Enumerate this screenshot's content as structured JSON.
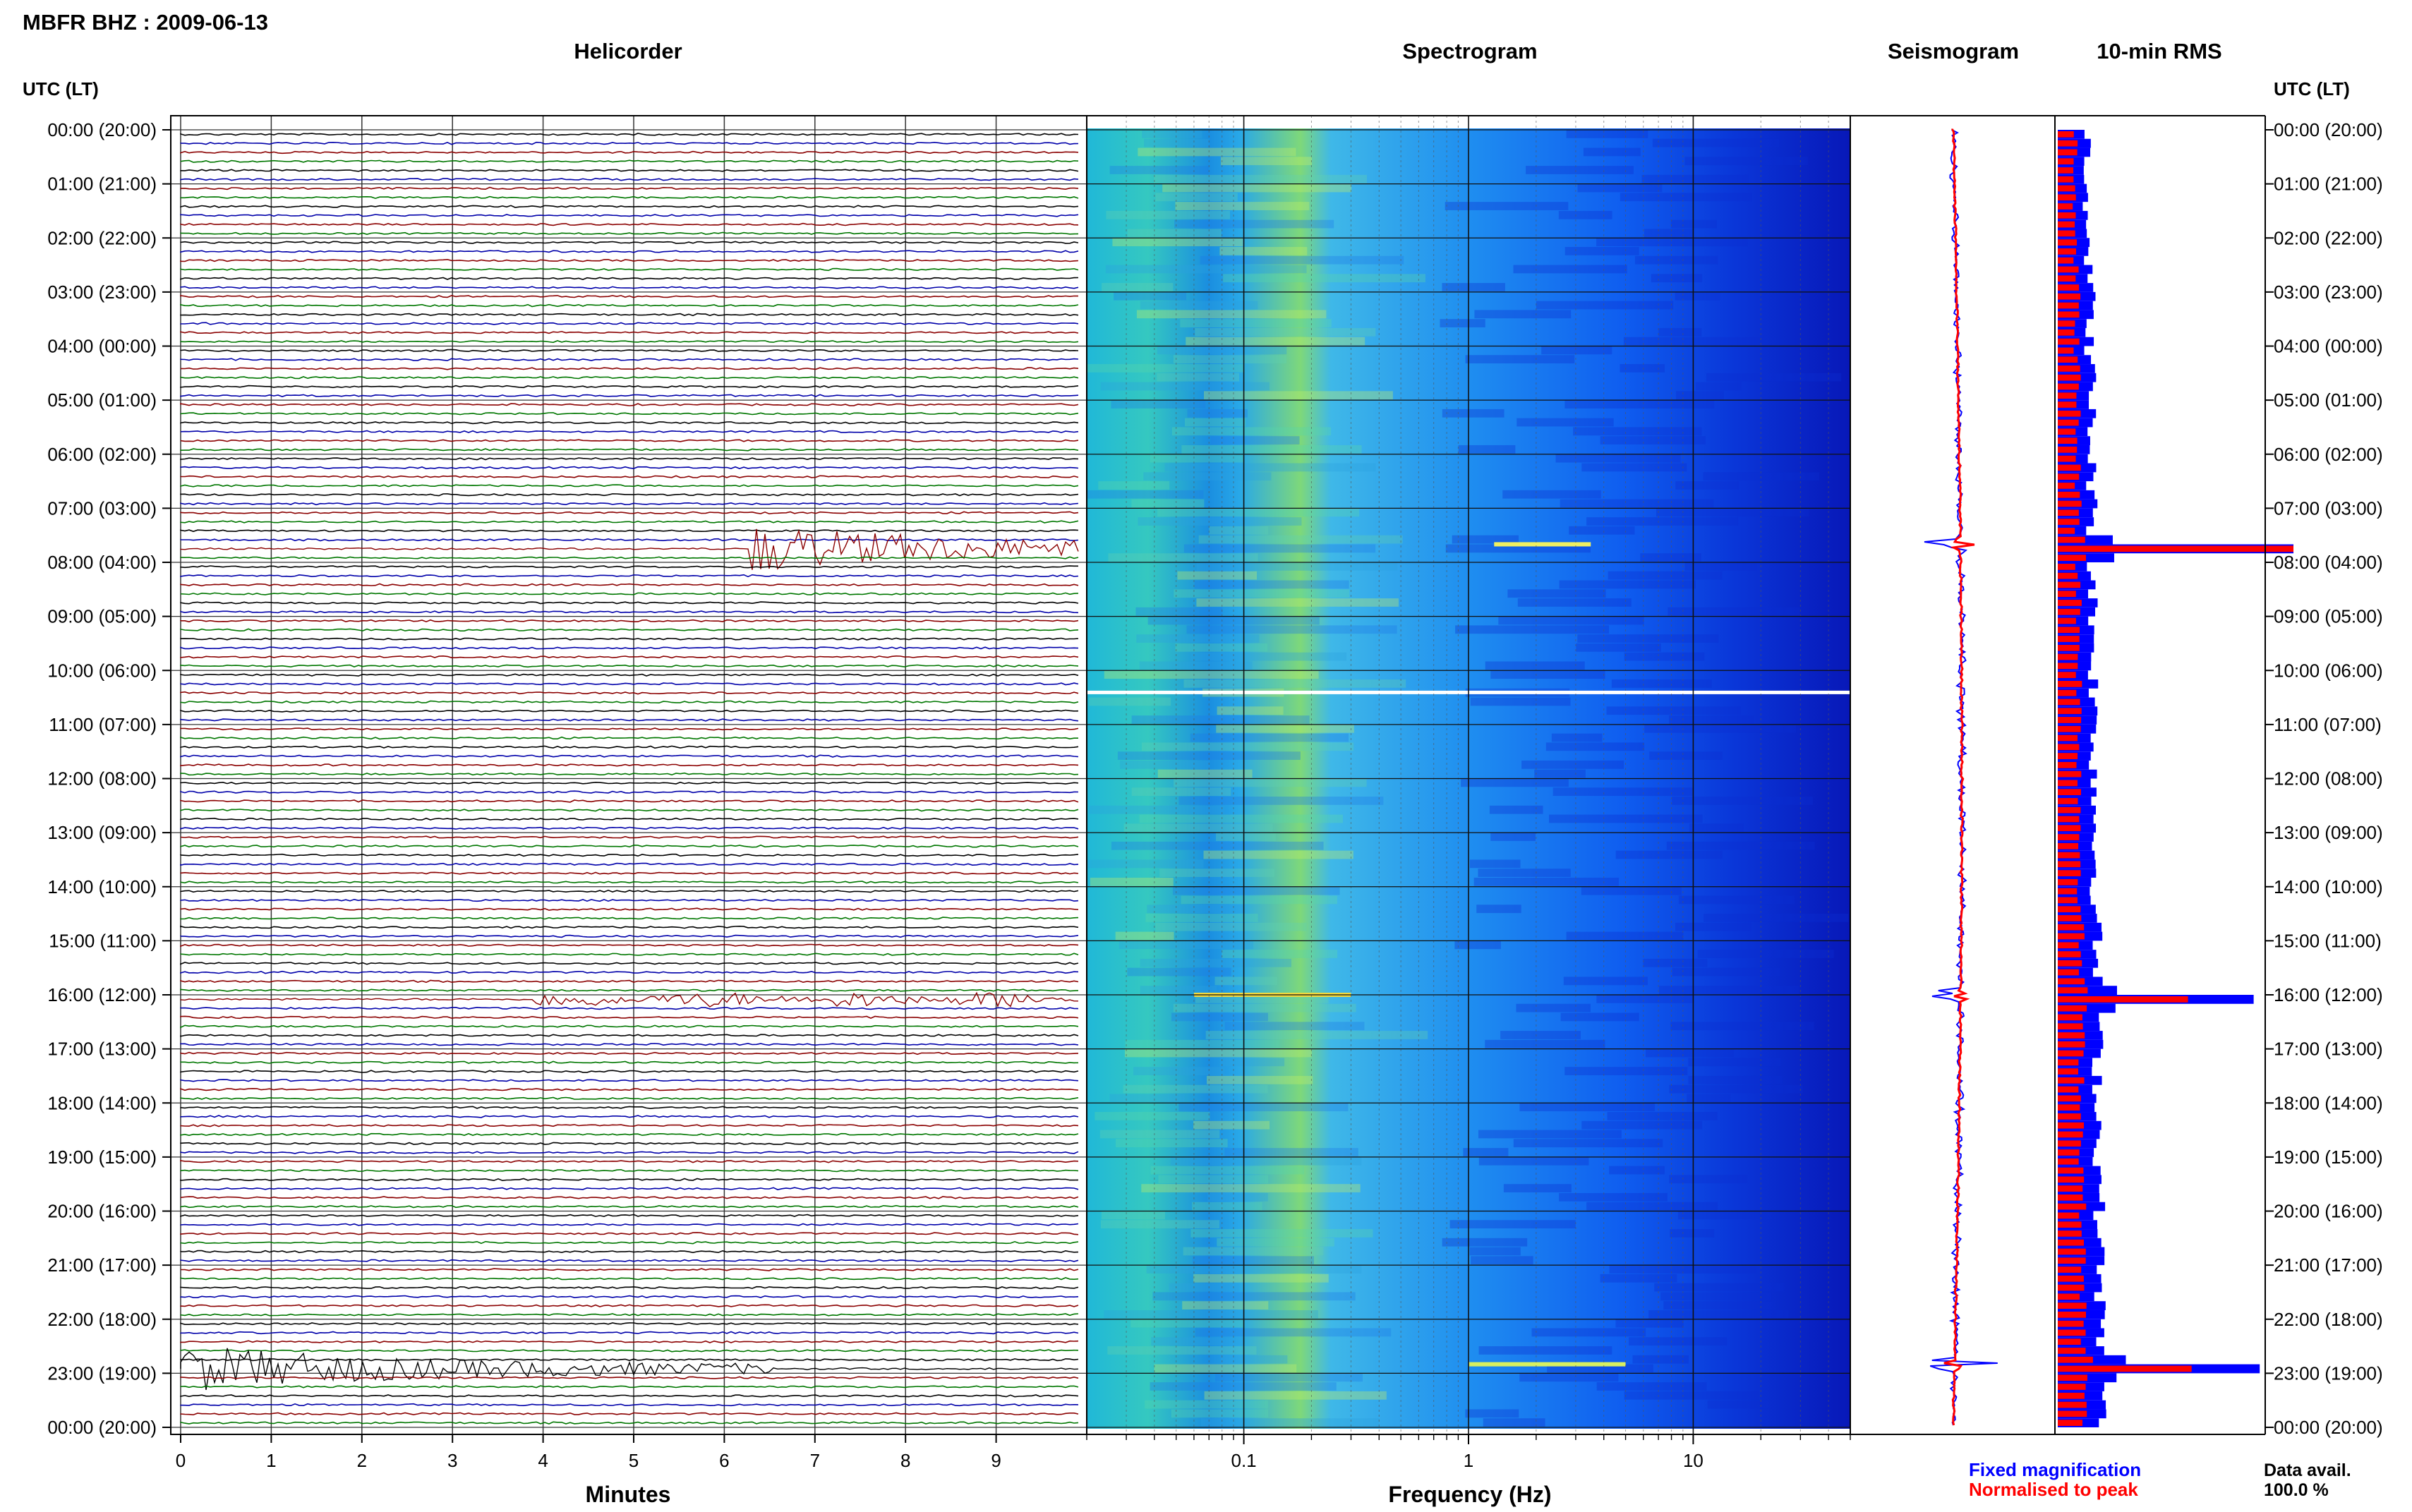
{
  "header": {
    "title": "MBFR BHZ : 2009-06-13"
  },
  "panels": {
    "helicorder": "Helicorder",
    "spectrogram": "Spectrogram",
    "seismogram": "Seismogram",
    "rms": "10-min RMS"
  },
  "axes": {
    "time_label_left": "UTC (LT)",
    "time_label_right": "UTC (LT)",
    "minutes_label": "Minutes",
    "frequency_label": "Frequency (Hz)"
  },
  "legend": {
    "fixed": "Fixed magnification",
    "normalised": "Normalised to peak",
    "fixed_color": "#0000ff",
    "normalised_color": "#ff0000"
  },
  "data_avail": {
    "label": "Data avail.",
    "value": "100.0 %"
  },
  "chart_data": {
    "type": "heatmap",
    "title": "MBFR BHZ : 2009-06-13",
    "time_ticks": [
      "00:00 (20:00)",
      "01:00 (21:00)",
      "02:00 (22:00)",
      "03:00 (23:00)",
      "04:00 (00:00)",
      "05:00 (01:00)",
      "06:00 (02:00)",
      "07:00 (03:00)",
      "08:00 (04:00)",
      "09:00 (05:00)",
      "10:00 (06:00)",
      "11:00 (07:00)",
      "12:00 (08:00)",
      "13:00 (09:00)",
      "14:00 (10:00)",
      "15:00 (11:00)",
      "16:00 (12:00)",
      "17:00 (13:00)",
      "18:00 (14:00)",
      "19:00 (15:00)",
      "20:00 (16:00)",
      "21:00 (17:00)",
      "22:00 (18:00)",
      "23:00 (19:00)",
      "00:00 (20:00)"
    ],
    "helicorder": {
      "xlabel": "Minutes",
      "xlim": [
        0,
        10
      ],
      "x_ticks": [
        "0",
        "1",
        "2",
        "3",
        "4",
        "5",
        "6",
        "7",
        "8",
        "9"
      ],
      "trace_colors": [
        "#000000",
        "#0000aa",
        "#8b0000",
        "#007700"
      ],
      "events": [
        {
          "time_utc": "07:40",
          "start_min": 6.3,
          "end_min": 10,
          "color": "#8b0000"
        },
        {
          "time_utc": "16:00",
          "start_min": 3.9,
          "end_min": 10,
          "color": "#8b0000"
        },
        {
          "time_utc": "22:50",
          "start_min": 0,
          "end_min": 6.5,
          "color": "#000000"
        }
      ]
    },
    "spectrogram": {
      "xlabel": "Frequency (Hz)",
      "scale": "log",
      "xlim": [
        0.02,
        50
      ],
      "x_ticks": [
        "0.1",
        "1",
        "10"
      ]
    },
    "rms": {
      "series": [
        {
          "name": "Fixed magnification",
          "color": "#0000ff"
        },
        {
          "name": "Normalised to peak",
          "color": "#ff0000"
        }
      ],
      "peaks_utc": [
        "07:40",
        "16:00",
        "22:50"
      ]
    }
  }
}
